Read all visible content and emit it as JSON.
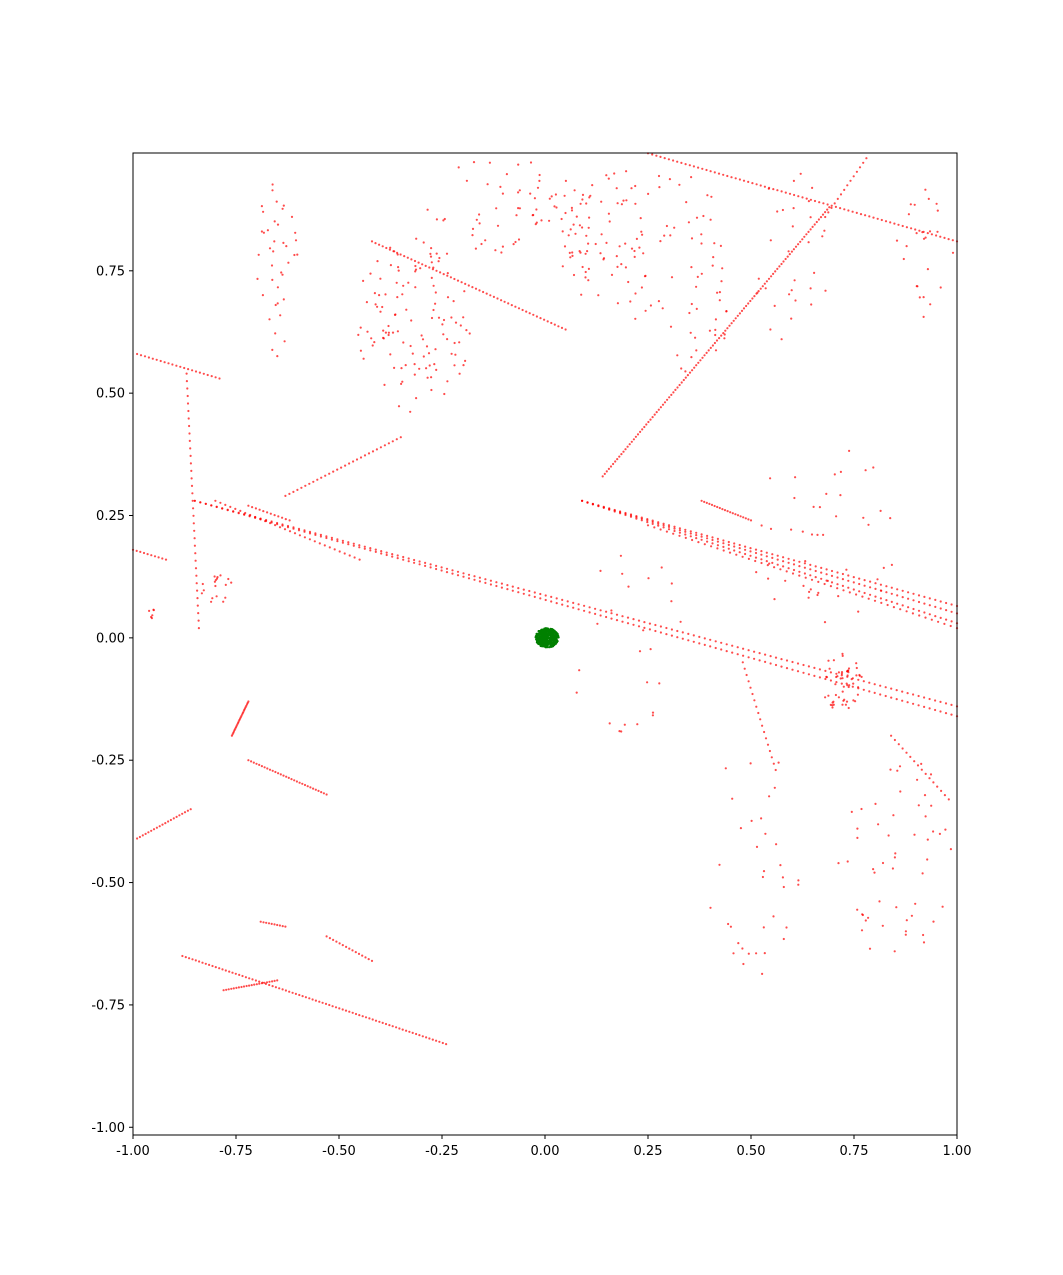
{
  "chart_data": {
    "type": "scatter",
    "title": "",
    "xlabel": "",
    "ylabel": "",
    "xlim": [
      -1.0,
      1.0
    ],
    "ylim": [
      -1.0,
      1.0
    ],
    "x_ticks": [
      -1.0,
      -0.75,
      -0.5,
      -0.25,
      0.0,
      0.25,
      0.5,
      0.75,
      1.0
    ],
    "x_tick_labels": [
      "-1.00",
      "-0.75",
      "-0.50",
      "-0.25",
      "0.00",
      "0.25",
      "0.50",
      "0.75",
      "1.00"
    ],
    "y_ticks": [
      -1.0,
      -0.75,
      -0.5,
      -0.25,
      0.0,
      0.25,
      0.5,
      0.75
    ],
    "y_tick_labels": [
      "-1.00",
      "-0.75",
      "-0.50",
      "-0.25",
      "0.00",
      "0.25",
      "0.50",
      "0.75"
    ],
    "grid": false,
    "legend": "none",
    "series": [
      {
        "color": "#ff0000",
        "opacity": 0.7,
        "segments": [
          {
            "from": [
              0.09,
              0.28
            ],
            "to": [
              1.0,
              0.03
            ],
            "n": 70
          },
          {
            "from": [
              0.09,
              0.28
            ],
            "to": [
              1.0,
              0.05
            ],
            "n": 70
          },
          {
            "from": [
              0.09,
              0.28
            ],
            "to": [
              1.0,
              0.065
            ],
            "n": 70
          },
          {
            "from": [
              0.25,
              0.23
            ],
            "to": [
              1.0,
              0.02
            ],
            "n": 50
          },
          {
            "from": [
              -0.85,
              0.28
            ],
            "to": [
              1.0,
              -0.16
            ],
            "n": 140
          },
          {
            "from": [
              -0.85,
              0.28
            ],
            "to": [
              1.0,
              -0.14
            ],
            "n": 140
          },
          {
            "from": [
              -0.8,
              0.28
            ],
            "to": [
              -0.45,
              0.16
            ],
            "n": 30
          },
          {
            "from": [
              -0.72,
              0.27
            ],
            "to": [
              -0.62,
              0.24
            ],
            "n": 12
          },
          {
            "from": [
              0.14,
              0.33
            ],
            "to": [
              0.69,
              0.88
            ],
            "n": 110
          },
          {
            "from": [
              0.68,
              0.86
            ],
            "to": [
              0.78,
              0.98
            ],
            "n": 14
          },
          {
            "from": [
              -0.42,
              0.81
            ],
            "to": [
              0.05,
              0.63
            ],
            "n": 55
          },
          {
            "from": [
              0.25,
              0.99
            ],
            "to": [
              1.0,
              0.81
            ],
            "n": 75
          },
          {
            "from": [
              -0.99,
              0.58
            ],
            "to": [
              -0.79,
              0.53
            ],
            "n": 22
          },
          {
            "from": [
              -0.87,
              0.54
            ],
            "to": [
              -0.84,
              0.02
            ],
            "n": 35
          },
          {
            "from": [
              -0.63,
              0.29
            ],
            "to": [
              -0.35,
              0.41
            ],
            "n": 30
          },
          {
            "from": [
              -1.0,
              0.18
            ],
            "to": [
              -0.92,
              0.16
            ],
            "n": 10
          },
          {
            "from": [
              0.38,
              0.28
            ],
            "to": [
              0.5,
              0.24
            ],
            "n": 20
          },
          {
            "from": [
              -0.72,
              -0.25
            ],
            "to": [
              -0.53,
              -0.32
            ],
            "n": 30
          },
          {
            "from": [
              -0.99,
              -0.41
            ],
            "to": [
              -0.86,
              -0.35
            ],
            "n": 20
          },
          {
            "from": [
              -0.88,
              -0.65
            ],
            "to": [
              -0.24,
              -0.83
            ],
            "n": 80
          },
          {
            "from": [
              -0.78,
              -0.72
            ],
            "to": [
              -0.65,
              -0.7
            ],
            "n": 22
          },
          {
            "from": [
              -0.53,
              -0.61
            ],
            "to": [
              -0.42,
              -0.66
            ],
            "n": 15
          },
          {
            "from": [
              -0.69,
              -0.58
            ],
            "to": [
              -0.63,
              -0.59
            ],
            "n": 10
          },
          {
            "from": [
              -0.76,
              -0.2
            ],
            "to": [
              -0.72,
              -0.13
            ],
            "n": 25
          },
          {
            "from": [
              0.84,
              -0.2
            ],
            "to": [
              0.98,
              -0.33
            ],
            "n": 16
          },
          {
            "from": [
              0.48,
              -0.05
            ],
            "to": [
              0.56,
              -0.27
            ],
            "n": 18
          }
        ],
        "clusters": [
          {
            "center": [
              -0.65,
              0.75
            ],
            "spread": [
              0.06,
              0.18
            ],
            "n": 40,
            "seed": 11
          },
          {
            "center": [
              -0.32,
              0.64
            ],
            "spread": [
              0.14,
              0.18
            ],
            "n": 120,
            "seed": 12
          },
          {
            "center": [
              -0.1,
              0.88
            ],
            "spread": [
              0.2,
              0.1
            ],
            "n": 60,
            "seed": 13
          },
          {
            "center": [
              0.15,
              0.82
            ],
            "spread": [
              0.12,
              0.16
            ],
            "n": 70,
            "seed": 14
          },
          {
            "center": [
              0.32,
              0.75
            ],
            "spread": [
              0.15,
              0.22
            ],
            "n": 70,
            "seed": 15
          },
          {
            "center": [
              0.6,
              0.78
            ],
            "spread": [
              0.1,
              0.18
            ],
            "n": 30,
            "seed": 16
          },
          {
            "center": [
              0.92,
              0.78
            ],
            "spread": [
              0.08,
              0.15
            ],
            "n": 25,
            "seed": 17
          },
          {
            "center": [
              0.72,
              -0.09
            ],
            "spread": [
              0.05,
              0.06
            ],
            "n": 55,
            "seed": 18
          },
          {
            "center": [
              0.85,
              -0.45
            ],
            "spread": [
              0.14,
              0.22
            ],
            "n": 55,
            "seed": 19
          },
          {
            "center": [
              0.5,
              -0.45
            ],
            "spread": [
              0.12,
              0.25
            ],
            "n": 35,
            "seed": 20
          },
          {
            "center": [
              0.68,
              0.2
            ],
            "spread": [
              0.18,
              0.22
            ],
            "n": 45,
            "seed": 21
          },
          {
            "center": [
              0.2,
              0.0
            ],
            "spread": [
              0.15,
              0.2
            ],
            "n": 25,
            "seed": 22
          },
          {
            "center": [
              -0.8,
              0.1
            ],
            "spread": [
              0.05,
              0.03
            ],
            "n": 18,
            "seed": 23
          },
          {
            "center": [
              -0.95,
              0.05
            ],
            "spread": [
              0.02,
              0.01
            ],
            "n": 6,
            "seed": 24
          }
        ]
      },
      {
        "color": "#008000",
        "opacity": 1.0,
        "segments": [],
        "clusters": [
          {
            "center": [
              0.005,
              0.0
            ],
            "spread": [
              0.028,
              0.02
            ],
            "n": 500,
            "seed": 7
          }
        ]
      }
    ]
  }
}
